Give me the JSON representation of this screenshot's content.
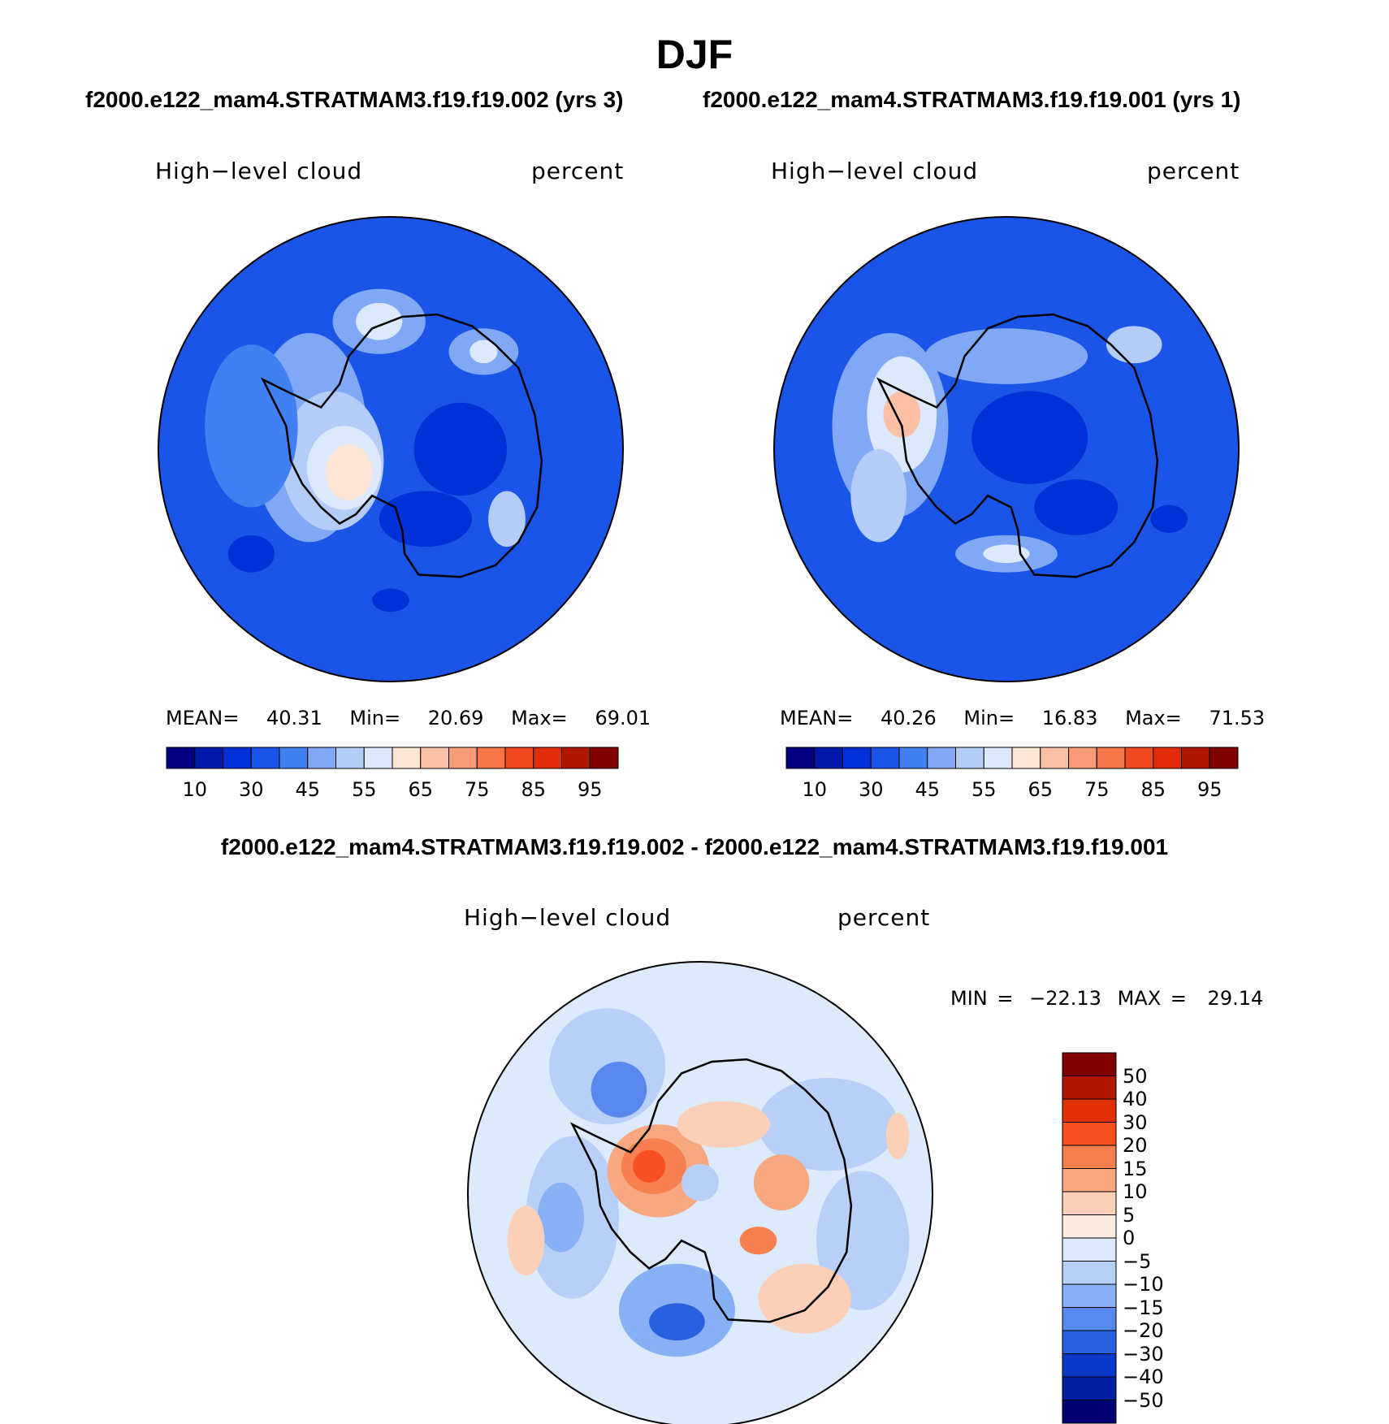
{
  "chart_data": {
    "title": "DJF",
    "type": "heatmap",
    "projection": "south-polar-stereographic",
    "panels": [
      {
        "id": "case",
        "header": "f2000.e122_mam4.STRATMAM3.f19.f19.002 (yrs 3)",
        "variable": "High−level cloud",
        "units": "percent",
        "stats": {
          "mean_label": "MEAN=",
          "mean": "40.31",
          "min_label": "Min=",
          "min": "20.69",
          "max_label": "Max=",
          "max": "69.01"
        },
        "levels": [
          "10",
          "30",
          "45",
          "55",
          "65",
          "75",
          "85",
          "95"
        ],
        "colors": [
          "#000080",
          "#0018a8",
          "#0030d8",
          "#1a55e8",
          "#4080f0",
          "#80a8f4",
          "#b4ccf8",
          "#dce9fc",
          "#fde4d4",
          "#fbc0a6",
          "#f89c78",
          "#f57448",
          "#f24a20",
          "#e02c08",
          "#b01800",
          "#800000"
        ]
      },
      {
        "id": "control",
        "header": "f2000.e122_mam4.STRATMAM3.f19.f19.001 (yrs 1)",
        "variable": "High−level cloud",
        "units": "percent",
        "stats": {
          "mean_label": "MEAN=",
          "mean": "40.26",
          "min_label": "Min=",
          "min": "16.83",
          "max_label": "Max=",
          "max": "71.53"
        },
        "levels": [
          "10",
          "30",
          "45",
          "55",
          "65",
          "75",
          "85",
          "95"
        ],
        "colors": [
          "#000080",
          "#0018a8",
          "#0030d8",
          "#1a55e8",
          "#4080f0",
          "#80a8f4",
          "#b4ccf8",
          "#dce9fc",
          "#fde4d4",
          "#fbc0a6",
          "#f89c78",
          "#f57448",
          "#f24a20",
          "#e02c08",
          "#b01800",
          "#800000"
        ]
      },
      {
        "id": "difference",
        "header": "f2000.e122_mam4.STRATMAM3.f19.f19.002 - f2000.e122_mam4.STRATMAM3.f19.f19.001",
        "variable": "High−level cloud",
        "units": "percent",
        "stats": {
          "min_label": "MIN =",
          "min": "−22.13",
          "max_label": "MAX =",
          "max": "29.14"
        },
        "levels": [
          "50",
          "40",
          "30",
          "20",
          "15",
          "10",
          "5",
          "0",
          "−5",
          "−10",
          "−15",
          "−20",
          "−30",
          "−40",
          "−50"
        ],
        "colors": [
          "#800000",
          "#b01800",
          "#e03008",
          "#f85020",
          "#f88050",
          "#f8a880",
          "#fcd0b8",
          "#fdebe0",
          "#dceafc",
          "#b8d0f8",
          "#88b0f4",
          "#5888ee",
          "#2860e0",
          "#0838c8",
          "#0020a0",
          "#000070"
        ]
      }
    ]
  }
}
